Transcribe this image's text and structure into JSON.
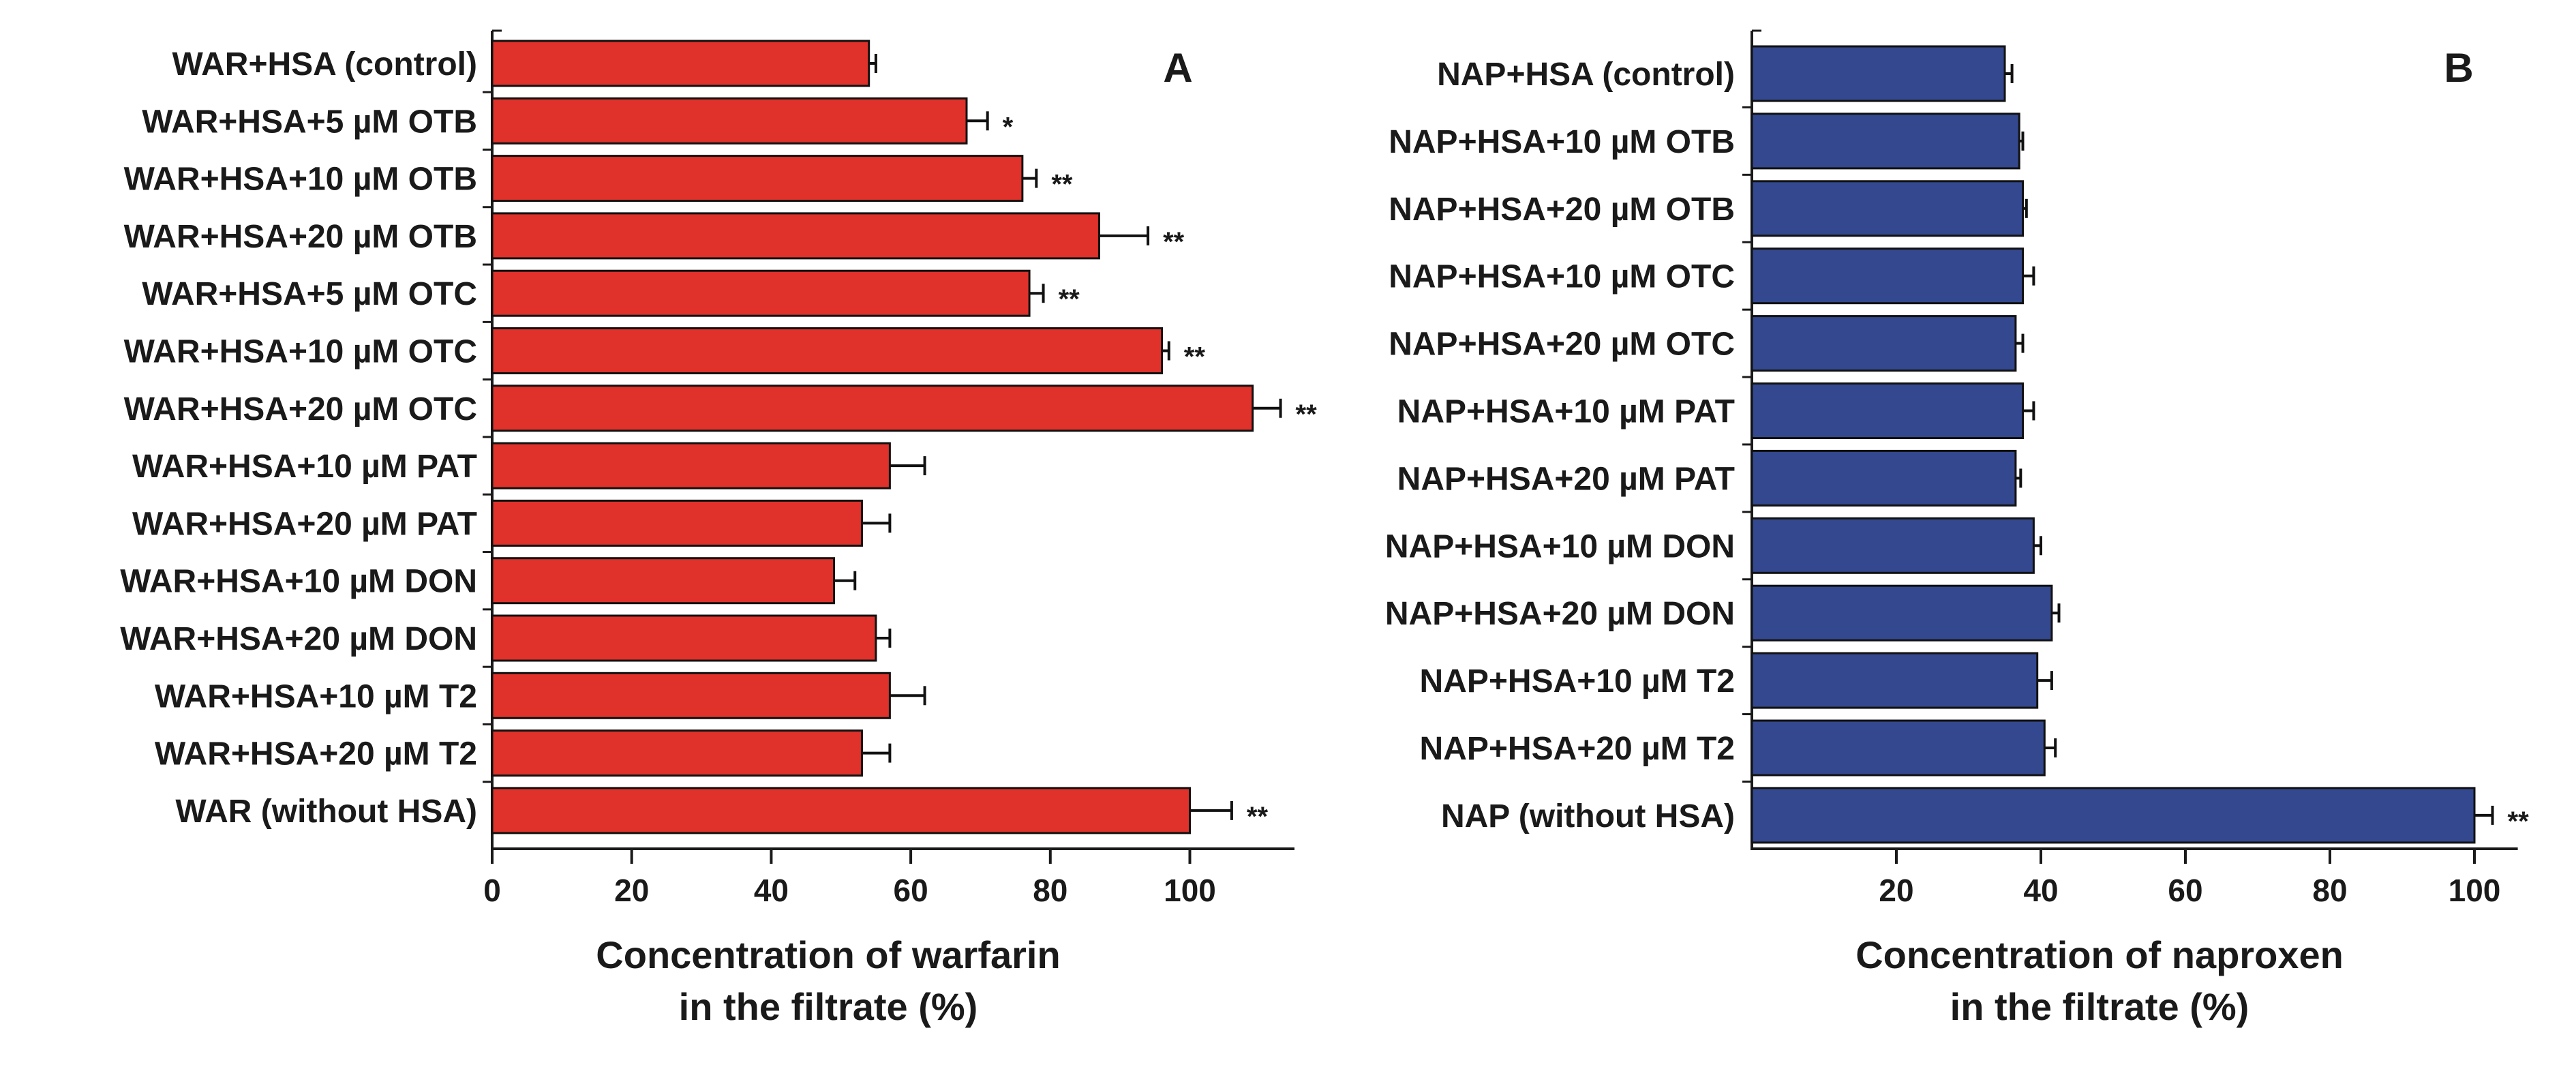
{
  "chart_data": [
    {
      "panel": "A",
      "type": "bar",
      "orientation": "horizontal",
      "xlabel": [
        "Concentration of warfarin",
        "in the filtrate (%)"
      ],
      "xlim": [
        0,
        115
      ],
      "xticks": [
        0,
        20,
        40,
        60,
        80,
        100
      ],
      "bar_color": "#e0312a",
      "categories": [
        "WAR+HSA (control)",
        "WAR+HSA+5 µM OTB",
        "WAR+HSA+10 µM OTB",
        "WAR+HSA+20 µM OTB",
        "WAR+HSA+5 µM OTC",
        "WAR+HSA+10 µM OTC",
        "WAR+HSA+20 µM OTC",
        "WAR+HSA+10 µM PAT",
        "WAR+HSA+20 µM PAT",
        "WAR+HSA+10 µM DON",
        "WAR+HSA+20 µM DON",
        "WAR+HSA+10 µM T2",
        "WAR+HSA+20 µM T2",
        "WAR (without HSA)"
      ],
      "values": [
        54,
        68,
        76,
        87,
        77,
        96,
        109,
        57,
        53,
        49,
        55,
        57,
        53,
        100
      ],
      "errors": [
        1,
        3,
        2,
        7,
        2,
        1,
        4,
        5,
        4,
        3,
        2,
        5,
        4,
        6
      ],
      "significance": [
        "",
        "*",
        "**",
        "**",
        "**",
        "**",
        "**",
        "",
        "",
        "",
        "",
        "",
        "",
        "**"
      ]
    },
    {
      "panel": "B",
      "type": "bar",
      "orientation": "horizontal",
      "xlabel": [
        "Concentration of naproxen",
        "in the filtrate (%)"
      ],
      "xlim": [
        0,
        106
      ],
      "xticks": [
        20,
        40,
        60,
        80,
        100
      ],
      "bar_color": "#33488f",
      "categories": [
        "NAP+HSA (control)",
        "NAP+HSA+10 µM OTB",
        "NAP+HSA+20 µM OTB",
        "NAP+HSA+10 µM OTC",
        "NAP+HSA+20 µM OTC",
        "NAP+HSA+10 µM PAT",
        "NAP+HSA+20 µM PAT",
        "NAP+HSA+10 µM DON",
        "NAP+HSA+20 µM DON",
        "NAP+HSA+10 µM T2",
        "NAP+HSA+20 µM T2",
        "NAP (without HSA)"
      ],
      "values": [
        35,
        37,
        37.5,
        37.5,
        36.5,
        37.5,
        36.5,
        39,
        41.5,
        39.5,
        40.5,
        100
      ],
      "errors": [
        1,
        0.5,
        0.5,
        1.5,
        1,
        1.5,
        0.7,
        1,
        1,
        2,
        1.5,
        2.5
      ],
      "significance": [
        "",
        "",
        "",
        "",
        "",
        "",
        "",
        "",
        "",
        "",
        "",
        "**"
      ]
    }
  ]
}
